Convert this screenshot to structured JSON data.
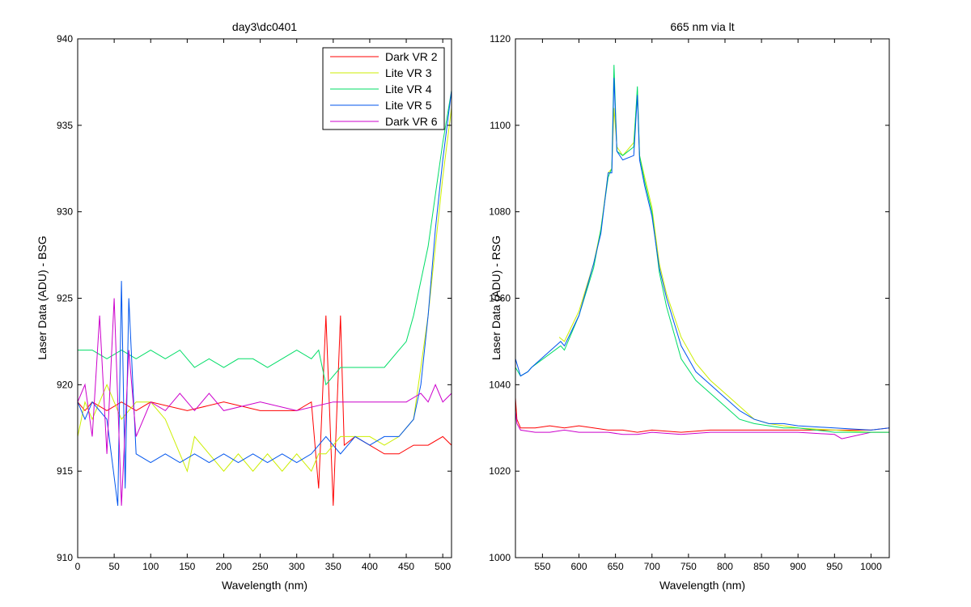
{
  "chart_data": [
    {
      "type": "line",
      "title": "day3\\dc0401",
      "xlabel": "Wavelength (nm)",
      "ylabel": "Laser Data (ADU) - BSG",
      "xlim": [
        0,
        512
      ],
      "ylim": [
        910,
        940
      ],
      "xticks": [
        0,
        50,
        100,
        150,
        200,
        250,
        300,
        350,
        400,
        450,
        500
      ],
      "yticks": [
        910,
        915,
        920,
        925,
        930,
        935,
        940
      ],
      "grid": false,
      "legend_position": "top-right",
      "series": [
        {
          "name": "Dark VR 2",
          "color": "#ff0000",
          "x": [
            0,
            10,
            20,
            40,
            60,
            80,
            100,
            150,
            200,
            250,
            300,
            320,
            330,
            340,
            350,
            360,
            365,
            380,
            400,
            420,
            440,
            460,
            480,
            500,
            512
          ],
          "y": [
            919,
            918.5,
            919,
            918.5,
            919,
            918.5,
            919,
            918.5,
            919,
            918.5,
            918.5,
            919,
            914,
            924,
            913,
            924,
            916.5,
            917,
            916.5,
            916,
            916,
            916.5,
            916.5,
            917,
            916.5
          ]
        },
        {
          "name": "Lite VR 3",
          "color": "#ccee00",
          "x": [
            0,
            10,
            20,
            40,
            60,
            80,
            90,
            100,
            120,
            140,
            150,
            160,
            180,
            200,
            220,
            240,
            260,
            280,
            300,
            320,
            330,
            340,
            360,
            380,
            400,
            420,
            440,
            460,
            470,
            480,
            490,
            500,
            512
          ],
          "y": [
            917,
            919,
            918,
            920,
            918,
            919,
            919,
            919,
            918,
            916,
            915,
            917,
            916,
            915,
            916,
            915,
            916,
            915,
            916,
            915,
            916,
            916,
            917,
            917,
            917,
            916.5,
            917,
            918,
            921,
            924,
            928,
            932,
            936
          ]
        },
        {
          "name": "Lite VR 4",
          "color": "#00dd66",
          "x": [
            0,
            20,
            40,
            60,
            80,
            100,
            120,
            140,
            160,
            180,
            200,
            220,
            240,
            260,
            280,
            300,
            320,
            330,
            340,
            360,
            380,
            400,
            420,
            440,
            450,
            460,
            470,
            480,
            490,
            500,
            512
          ],
          "y": [
            922,
            922,
            921.5,
            922,
            921.5,
            922,
            921.5,
            922,
            921,
            921.5,
            921,
            921.5,
            921.5,
            921,
            921.5,
            922,
            921.5,
            922,
            920,
            921,
            921,
            921,
            921,
            922,
            922.5,
            924,
            926,
            928,
            931,
            934,
            937
          ]
        },
        {
          "name": "Lite VR 5",
          "color": "#0055ee",
          "x": [
            0,
            10,
            20,
            40,
            55,
            60,
            65,
            70,
            80,
            100,
            120,
            140,
            160,
            180,
            200,
            220,
            240,
            260,
            280,
            300,
            320,
            340,
            360,
            380,
            400,
            420,
            440,
            460,
            470,
            480,
            490,
            500,
            512
          ],
          "y": [
            919,
            918,
            919,
            918,
            913,
            926,
            914,
            925,
            916,
            915.5,
            916,
            915.5,
            916,
            915.5,
            916,
            915.5,
            916,
            915.5,
            916,
            915.5,
            916,
            917,
            916,
            917,
            916.5,
            917,
            917,
            918,
            920,
            924,
            929,
            933,
            937
          ]
        },
        {
          "name": "Dark VR 6",
          "color": "#cc00cc",
          "x": [
            0,
            10,
            20,
            30,
            40,
            50,
            60,
            70,
            80,
            100,
            120,
            140,
            160,
            180,
            200,
            250,
            300,
            350,
            400,
            450,
            470,
            480,
            490,
            500,
            512
          ],
          "y": [
            919,
            920,
            917,
            924,
            916,
            925,
            913,
            922,
            917,
            919,
            918.5,
            919.5,
            918.5,
            919.5,
            918.5,
            919,
            918.5,
            919,
            919,
            919,
            919.5,
            919,
            920,
            919,
            919.5
          ]
        }
      ]
    },
    {
      "type": "line",
      "title": "665 nm via lt",
      "xlabel": "Wavelength (nm)",
      "ylabel": "Laser Data (ADU) - RSG",
      "xlim": [
        513,
        1025
      ],
      "ylim": [
        1000,
        1120
      ],
      "xticks": [
        550,
        600,
        650,
        700,
        750,
        800,
        850,
        900,
        950,
        1000
      ],
      "yticks": [
        1000,
        1020,
        1040,
        1060,
        1080,
        1100,
        1120
      ],
      "grid": false,
      "series": [
        {
          "name": "",
          "color": "#ff0000",
          "x": [
            513,
            515,
            520,
            540,
            560,
            580,
            600,
            620,
            640,
            660,
            680,
            700,
            740,
            780,
            820,
            860,
            900,
            950,
            1000,
            1025
          ],
          "y": [
            1037,
            1032,
            1030,
            1030,
            1030.5,
            1030,
            1030.5,
            1030,
            1029.5,
            1029.5,
            1029,
            1029.5,
            1029,
            1029.5,
            1029.5,
            1029.5,
            1029.5,
            1029.5,
            1029.5,
            1030
          ]
        },
        {
          "name": "",
          "color": "#cc00cc",
          "x": [
            513,
            515,
            520,
            540,
            560,
            580,
            600,
            620,
            640,
            660,
            680,
            700,
            740,
            780,
            820,
            860,
            900,
            950,
            960,
            1000,
            1025
          ],
          "y": [
            1034,
            1031,
            1029.5,
            1029,
            1029,
            1029.5,
            1029,
            1029,
            1029,
            1028.5,
            1028.5,
            1029,
            1028.5,
            1029,
            1029,
            1029,
            1029,
            1028.5,
            1027.5,
            1029,
            1029
          ]
        },
        {
          "name": "",
          "color": "#ccee00",
          "x": [
            573,
            580,
            600,
            620,
            630,
            640,
            645,
            648,
            652,
            660,
            675,
            680,
            683,
            690,
            700,
            710,
            720,
            740,
            760,
            780,
            800,
            820,
            840,
            860,
            880,
            900,
            950,
            1000,
            1025
          ],
          "y": [
            1051,
            1050,
            1057,
            1068,
            1076,
            1089,
            1090,
            1104,
            1095,
            1093,
            1096,
            1108,
            1093,
            1088,
            1081,
            1068,
            1061,
            1051,
            1045,
            1041,
            1038,
            1035,
            1032,
            1031,
            1030.5,
            1030,
            1029.5,
            1029,
            1029
          ]
        },
        {
          "name": "",
          "color": "#00dd66",
          "x": [
            513,
            520,
            530,
            535,
            575,
            580,
            600,
            620,
            630,
            640,
            645,
            648,
            652,
            660,
            675,
            680,
            683,
            690,
            700,
            710,
            720,
            740,
            760,
            780,
            800,
            820,
            840,
            860,
            880,
            900,
            950,
            1000,
            1025
          ],
          "y": [
            1044,
            1042,
            1043,
            1044,
            1049,
            1048,
            1056,
            1067,
            1076,
            1088,
            1090,
            1114,
            1094,
            1093,
            1095,
            1109,
            1093,
            1087,
            1080,
            1066,
            1058,
            1046,
            1041,
            1038,
            1035,
            1032,
            1031,
            1030.5,
            1030,
            1030,
            1029,
            1029,
            1029
          ]
        },
        {
          "name": "",
          "color": "#0055ee",
          "x": [
            513,
            520,
            530,
            535,
            575,
            580,
            600,
            620,
            630,
            640,
            645,
            648,
            652,
            660,
            675,
            680,
            683,
            690,
            700,
            710,
            720,
            740,
            760,
            780,
            800,
            820,
            840,
            860,
            880,
            900,
            950,
            1000,
            1025
          ],
          "y": [
            1046,
            1042,
            1043,
            1044,
            1050,
            1049,
            1056,
            1068,
            1075,
            1089,
            1089,
            1111,
            1094,
            1092,
            1093,
            1107,
            1092,
            1086,
            1079,
            1067,
            1060,
            1049,
            1043,
            1040,
            1037,
            1034,
            1032,
            1031,
            1031,
            1030.5,
            1030,
            1029.5,
            1030
          ]
        }
      ]
    }
  ]
}
